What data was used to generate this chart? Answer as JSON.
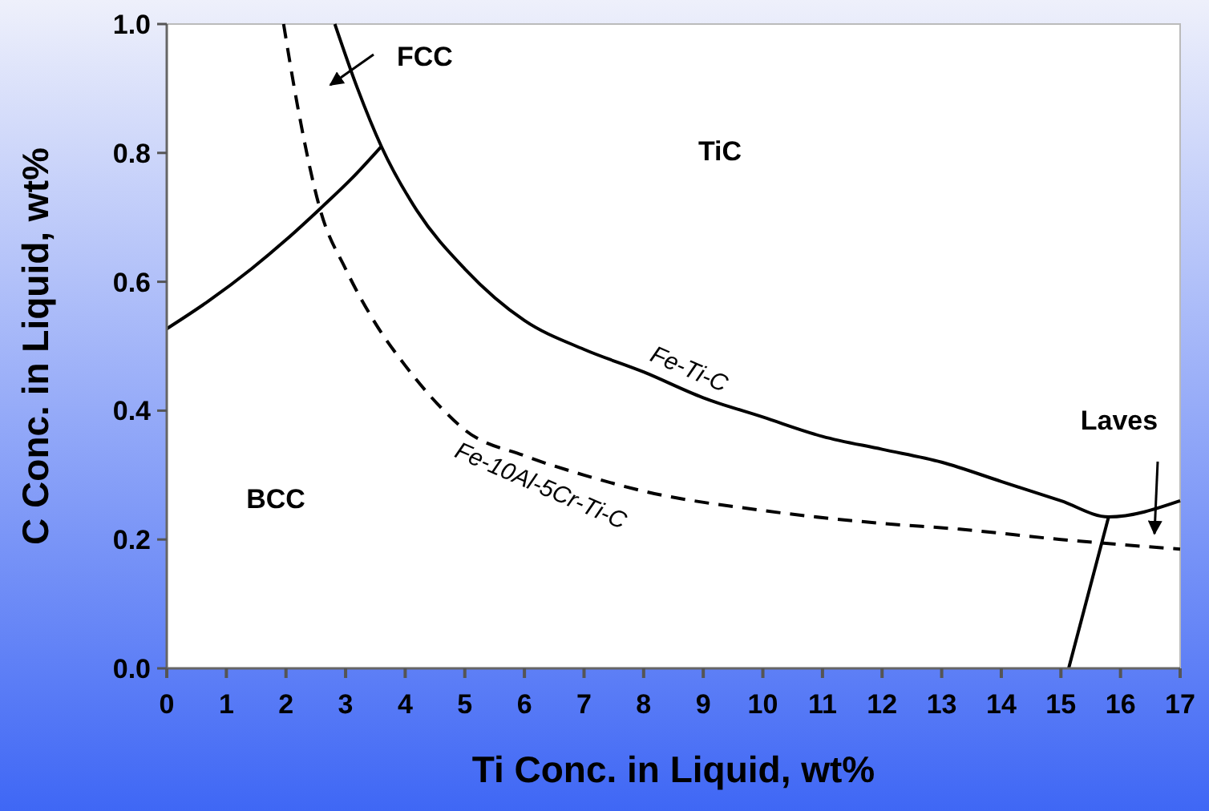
{
  "chart_data": {
    "type": "line",
    "xlabel": "Ti Conc. in Liquid, wt%",
    "ylabel": "C Conc. in Liquid, wt%",
    "xlim": [
      0,
      17
    ],
    "ylim": [
      0,
      1
    ],
    "xticks": [
      0,
      1,
      2,
      3,
      4,
      5,
      6,
      7,
      8,
      9,
      10,
      11,
      12,
      13,
      14,
      15,
      16,
      17
    ],
    "yticks": [
      {
        "value": 0,
        "label": "0.0"
      },
      {
        "value": 0.2,
        "label": "0.2"
      },
      {
        "value": 0.4,
        "label": "0.4"
      },
      {
        "value": 0.6,
        "label": "0.6"
      },
      {
        "value": 0.8,
        "label": "0.8"
      },
      {
        "value": 1,
        "label": "1.0"
      }
    ],
    "grid": false,
    "series": [
      {
        "name": "Fe-Ti-C",
        "color": "#000000",
        "line_style": "solid",
        "x": [
          2.82,
          3.2,
          3.6,
          4.2,
          5,
          6,
          7,
          8,
          9,
          10,
          11,
          12,
          13,
          14,
          15,
          15.8,
          17
        ],
        "values": [
          1.0,
          0.9,
          0.81,
          0.71,
          0.62,
          0.54,
          0.495,
          0.46,
          0.42,
          0.39,
          0.36,
          0.34,
          0.32,
          0.29,
          0.26,
          0.235,
          0.26
        ]
      },
      {
        "name": "Fe-10Al-5Cr-Ti-C",
        "color": "#000000",
        "line_style": "dashed",
        "x": [
          1.96,
          2.2,
          2.58,
          3,
          3.47,
          4,
          4.65,
          5,
          6,
          7,
          8,
          10,
          12,
          13.3,
          15,
          17
        ],
        "values": [
          1.0,
          0.87,
          0.71,
          0.62,
          0.54,
          0.47,
          0.4,
          0.37,
          0.33,
          0.3,
          0.275,
          0.245,
          0.225,
          0.216,
          0.2,
          0.185
        ]
      },
      {
        "color": "#000000",
        "line_style": "solid",
        "x": [
          0,
          0.7,
          1.42,
          2,
          2.58,
          3.1,
          3.6
        ],
        "values": [
          0.527,
          0.57,
          0.62,
          0.665,
          0.714,
          0.76,
          0.81
        ]
      },
      {
        "color": "#000000",
        "line_style": "solid",
        "x": [
          15.13,
          15.8
        ],
        "values": [
          0,
          0.235
        ]
      }
    ],
    "annotations": [
      "FCC",
      "TiC",
      "BCC",
      "Laves"
    ]
  }
}
